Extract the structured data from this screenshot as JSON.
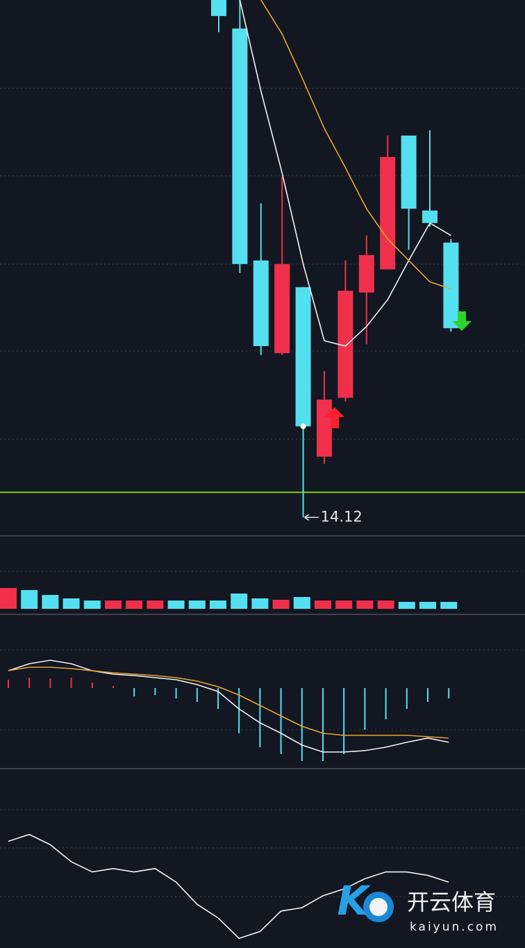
{
  "chart_data": [
    {
      "type": "candlestick",
      "open": [
        17.02,
        16.86,
        15.56,
        15.04,
        15.41,
        14.46,
        14.79,
        15.38,
        15.51,
        16.26,
        15.84,
        15.66
      ],
      "close": [
        16.93,
        15.54,
        15.08,
        15.54,
        14.63,
        14.78,
        15.39,
        15.59,
        16.14,
        15.85,
        15.77,
        15.18
      ],
      "high": [
        17.02,
        17.02,
        15.88,
        16.03,
        15.41,
        14.94,
        15.56,
        15.7,
        16.26,
        16.26,
        16.29,
        15.68
      ],
      "low": [
        16.84,
        15.49,
        15.03,
        15.03,
        14.12,
        14.42,
        14.77,
        15.09,
        15.51,
        15.62,
        15.75,
        15.16
      ],
      "up_color": "#f0304a",
      "down_color": "#54e0f0",
      "lines": [
        {
          "color": "#f2f2f2",
          "values": [
            null,
            17.02,
            16.51,
            16.05,
            15.54,
            15.11,
            15.08,
            15.19,
            15.34,
            15.56,
            15.77,
            15.7
          ]
        },
        {
          "color": "#e8a530",
          "values": [
            null,
            null,
            17.02,
            16.83,
            16.57,
            16.3,
            16.08,
            15.85,
            15.68,
            15.56,
            15.44,
            15.4
          ]
        }
      ],
      "level_line": {
        "value": 14.26,
        "color": "#7ed321"
      },
      "annotation": "14.12",
      "ylim": [
        14.02,
        17.02
      ]
    },
    {
      "type": "bar",
      "values": [
        30,
        27,
        20,
        15,
        12,
        12,
        12,
        12,
        12,
        12,
        12,
        22,
        15,
        13,
        17,
        12,
        12,
        12,
        12,
        10,
        10,
        10
      ],
      "colors": [
        "#f0304a",
        "#54e0f0",
        "#54e0f0",
        "#54e0f0",
        "#54e0f0",
        "#f0304a",
        "#f0304a",
        "#f0304a",
        "#54e0f0",
        "#54e0f0",
        "#54e0f0",
        "#54e0f0",
        "#54e0f0",
        "#f0304a",
        "#54e0f0",
        "#f0304a",
        "#f0304a",
        "#f0304a",
        "#f0304a",
        "#54e0f0",
        "#54e0f0",
        "#54e0f0"
      ],
      "ylim": [
        0,
        100
      ]
    },
    {
      "type": "macd",
      "histogram": [
        12,
        15,
        14,
        15,
        8,
        3,
        -12,
        -10,
        -15,
        -20,
        -30,
        -65,
        -85,
        -95,
        -105,
        -105,
        -95,
        -60,
        -45,
        -30,
        -20,
        -15
      ],
      "up_color": "#f0304a",
      "down_color": "#54e0f0",
      "lines": [
        {
          "color": "#f2f2f2",
          "values": [
            25,
            35,
            40,
            35,
            25,
            20,
            18,
            15,
            12,
            5,
            -5,
            -30,
            -50,
            -65,
            -82,
            -92,
            -92,
            -90,
            -85,
            -78,
            -72,
            -78
          ]
        },
        {
          "color": "#e8a530",
          "values": [
            25,
            30,
            30,
            28,
            25,
            22,
            20,
            18,
            15,
            10,
            2,
            -10,
            -25,
            -40,
            -55,
            -65,
            -68,
            -68,
            -68,
            -68,
            -70,
            -72
          ]
        }
      ],
      "ylim": [
        -120,
        100
      ]
    },
    {
      "type": "line",
      "lines": [
        {
          "color": "#f2f2f2",
          "values": [
            59,
            63,
            57,
            47,
            41,
            43,
            41,
            43,
            35,
            22,
            14,
            2,
            6,
            18,
            20,
            27,
            31,
            37,
            41,
            41,
            39,
            35
          ]
        }
      ],
      "ylim": [
        0,
        100
      ]
    }
  ],
  "watermark": {
    "name": "开云体育",
    "domain": "kaiyun.com"
  }
}
